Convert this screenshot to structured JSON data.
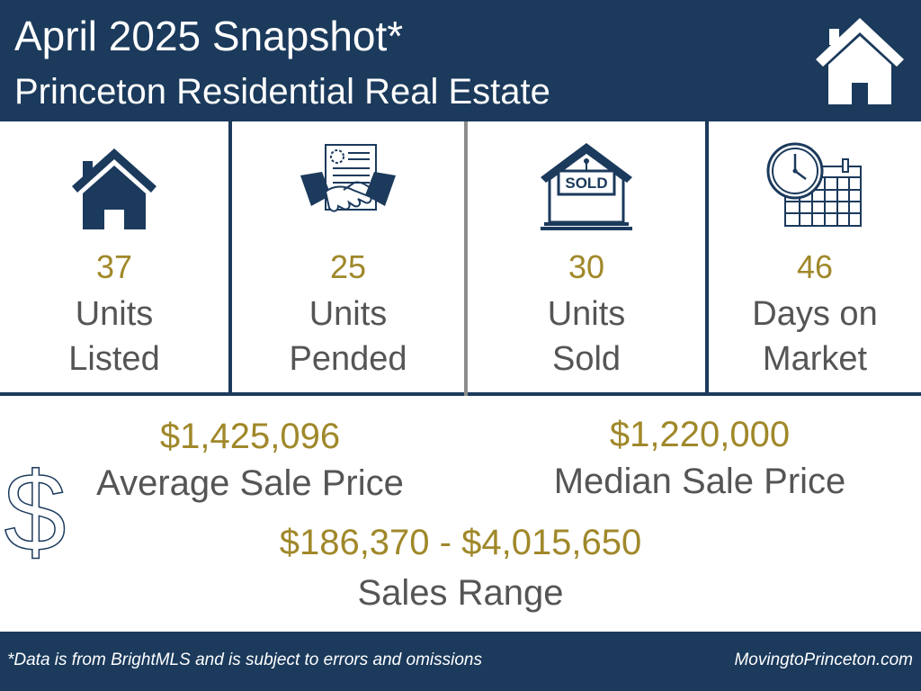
{
  "header": {
    "title": "April 2025 Snapshot*",
    "subtitle": "Princeton Residential Real Estate",
    "icon": "house-icon"
  },
  "stats": [
    {
      "value": "37",
      "label_line1": "Units",
      "label_line2": "Listed",
      "icon": "house-icon"
    },
    {
      "value": "25",
      "label_line1": "Units",
      "label_line2": "Pended",
      "icon": "handshake-contract-icon"
    },
    {
      "value": "30",
      "label_line1": "Units",
      "label_line2": "Sold",
      "icon": "sold-sign-icon"
    },
    {
      "value": "46",
      "label_line1": "Days on",
      "label_line2": "Market",
      "icon": "clock-calendar-icon"
    }
  ],
  "sold_sign_text": "SOLD",
  "prices": {
    "average": {
      "value": "$1,425,096",
      "label": "Average Sale Price"
    },
    "median": {
      "value": "$1,220,000",
      "label": "Median Sale Price"
    },
    "range": {
      "value": "$186,370 - $4,015,650",
      "label": "Sales Range"
    },
    "icon": "dollar-sign-icon"
  },
  "footer": {
    "note": "*Data is from BrightMLS and is subject to errors and omissions",
    "site": "MovingtoPrinceton.com"
  },
  "colors": {
    "navy": "#1b3a5c",
    "gold": "#a0882a",
    "gray_text": "#555555",
    "gray_divider": "#8c8c8c"
  }
}
